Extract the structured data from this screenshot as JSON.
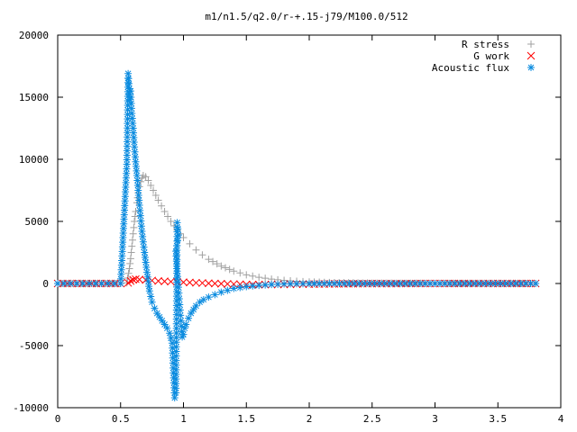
{
  "chart_data": {
    "type": "scatter",
    "title": "m1/n1.5/q2.0/r-+.15-j79/M100.0/512",
    "xlabel": "",
    "ylabel": "",
    "xlim": [
      0,
      4
    ],
    "ylim": [
      -10000,
      20000
    ],
    "x_ticks": [
      "0",
      "0.5",
      "1",
      "1.5",
      "2",
      "2.5",
      "3",
      "3.5",
      "4"
    ],
    "y_ticks": [
      "-10000",
      "-5000",
      "0",
      "5000",
      "10000",
      "15000",
      "20000"
    ],
    "grid": false,
    "legend_position": "top-right",
    "series": [
      {
        "name": "R stress",
        "color": "#a0a0a0",
        "marker": "plus",
        "x": [
          0.0,
          0.5,
          0.55,
          0.57,
          0.58,
          0.59,
          0.6,
          0.61,
          0.62,
          0.63,
          0.64,
          0.65,
          0.66,
          0.67,
          0.68,
          0.7,
          0.72,
          0.74,
          0.76,
          0.78,
          0.8,
          0.85,
          0.9,
          0.95,
          1.0,
          1.05,
          1.1,
          1.15,
          1.2,
          1.3,
          1.4,
          1.5,
          1.6,
          1.7,
          1.8,
          1.9,
          2.0,
          2.2,
          2.5,
          3.0,
          3.5,
          3.8
        ],
        "y": [
          0,
          0,
          50,
          1200,
          2000,
          3000,
          4000,
          5000,
          5800,
          6500,
          7300,
          7800,
          8200,
          8500,
          8700,
          8600,
          8300,
          7900,
          7500,
          7100,
          6700,
          5800,
          5000,
          4300,
          3700,
          3200,
          2700,
          2300,
          1950,
          1400,
          1000,
          700,
          500,
          350,
          250,
          180,
          130,
          70,
          30,
          10,
          5,
          0
        ]
      },
      {
        "name": "G work",
        "color": "#ff0000",
        "marker": "cross",
        "x": [
          0.0,
          0.5,
          0.56,
          0.58,
          0.6,
          0.62,
          0.65,
          0.7,
          0.75,
          0.8,
          0.9,
          1.0,
          1.1,
          1.2,
          1.3,
          1.4,
          1.5,
          1.6,
          1.7,
          1.8,
          1.9,
          2.0,
          2.2,
          2.5,
          3.0,
          3.5,
          3.8
        ],
        "y": [
          0,
          0,
          50,
          200,
          300,
          350,
          320,
          280,
          240,
          200,
          150,
          100,
          60,
          20,
          -20,
          -50,
          -80,
          -90,
          -80,
          -70,
          -60,
          -50,
          -30,
          -10,
          0,
          0,
          0
        ]
      },
      {
        "name": "Acoustic flux",
        "color": "#0a8bdf",
        "marker": "star",
        "x": [
          0.0,
          0.1,
          0.2,
          0.3,
          0.4,
          0.5,
          0.55,
          0.56,
          0.57,
          0.575,
          0.58,
          0.585,
          0.59,
          0.6,
          0.61,
          0.62,
          0.63,
          0.64,
          0.65,
          0.67,
          0.69,
          0.71,
          0.73,
          0.75,
          0.77,
          0.79,
          0.81,
          0.83,
          0.85,
          0.87,
          0.89,
          0.91,
          0.92,
          0.93,
          0.94,
          0.95,
          0.96,
          0.94,
          0.95,
          0.96,
          0.97,
          0.98,
          0.99,
          1.0,
          1.01,
          1.02,
          1.04,
          1.06,
          1.08,
          1.1,
          1.13,
          1.16,
          1.2,
          1.25,
          1.3,
          1.35,
          1.4,
          1.5,
          1.6,
          1.7,
          1.8,
          1.9,
          2.0,
          2.2,
          2.4,
          2.6,
          2.8,
          3.0,
          3.2,
          3.4,
          3.6,
          3.8
        ],
        "y": [
          0,
          0,
          0,
          0,
          0,
          0,
          9600,
          16900,
          15700,
          14800,
          15500,
          14500,
          13700,
          12500,
          11000,
          9800,
          8700,
          7500,
          6300,
          4200,
          2500,
          900,
          -600,
          -1500,
          -2000,
          -2400,
          -2700,
          -3000,
          -3300,
          -3600,
          -4000,
          -4800,
          -7200,
          -9200,
          -8800,
          4900,
          3900,
          2600,
          1000,
          -300,
          -1700,
          -3000,
          -4300,
          -4100,
          -3600,
          -3300,
          -2800,
          -2400,
          -2100,
          -1800,
          -1500,
          -1300,
          -1100,
          -900,
          -700,
          -550,
          -400,
          -250,
          -150,
          -80,
          -40,
          -20,
          -10,
          0,
          0,
          0,
          0,
          0,
          0,
          0,
          0,
          0
        ]
      }
    ]
  }
}
